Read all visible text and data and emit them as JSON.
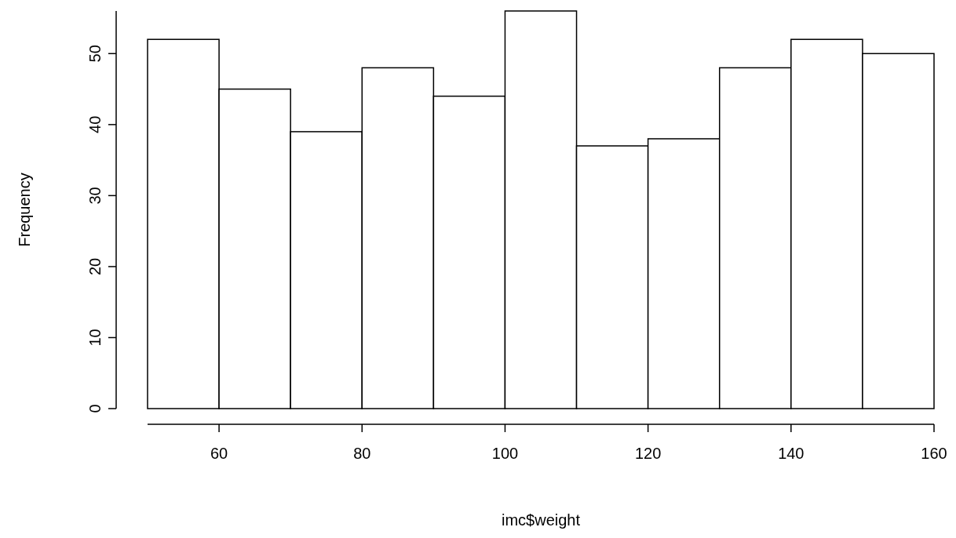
{
  "chart_data": {
    "type": "histogram",
    "xlabel": "imc$weight",
    "ylabel": "Frequency",
    "bins": [
      50,
      60,
      70,
      80,
      90,
      100,
      110,
      120,
      130,
      140,
      150,
      160
    ],
    "values": [
      52,
      45,
      39,
      48,
      44,
      56,
      37,
      38,
      48,
      52,
      50
    ],
    "color": "#ffffff",
    "xlim": [
      50,
      160
    ],
    "ylim": [
      0,
      56
    ],
    "xticks": [
      60,
      80,
      100,
      120,
      140,
      160
    ],
    "yticks": [
      0,
      10,
      20,
      30,
      40,
      50
    ],
    "grid": false
  }
}
